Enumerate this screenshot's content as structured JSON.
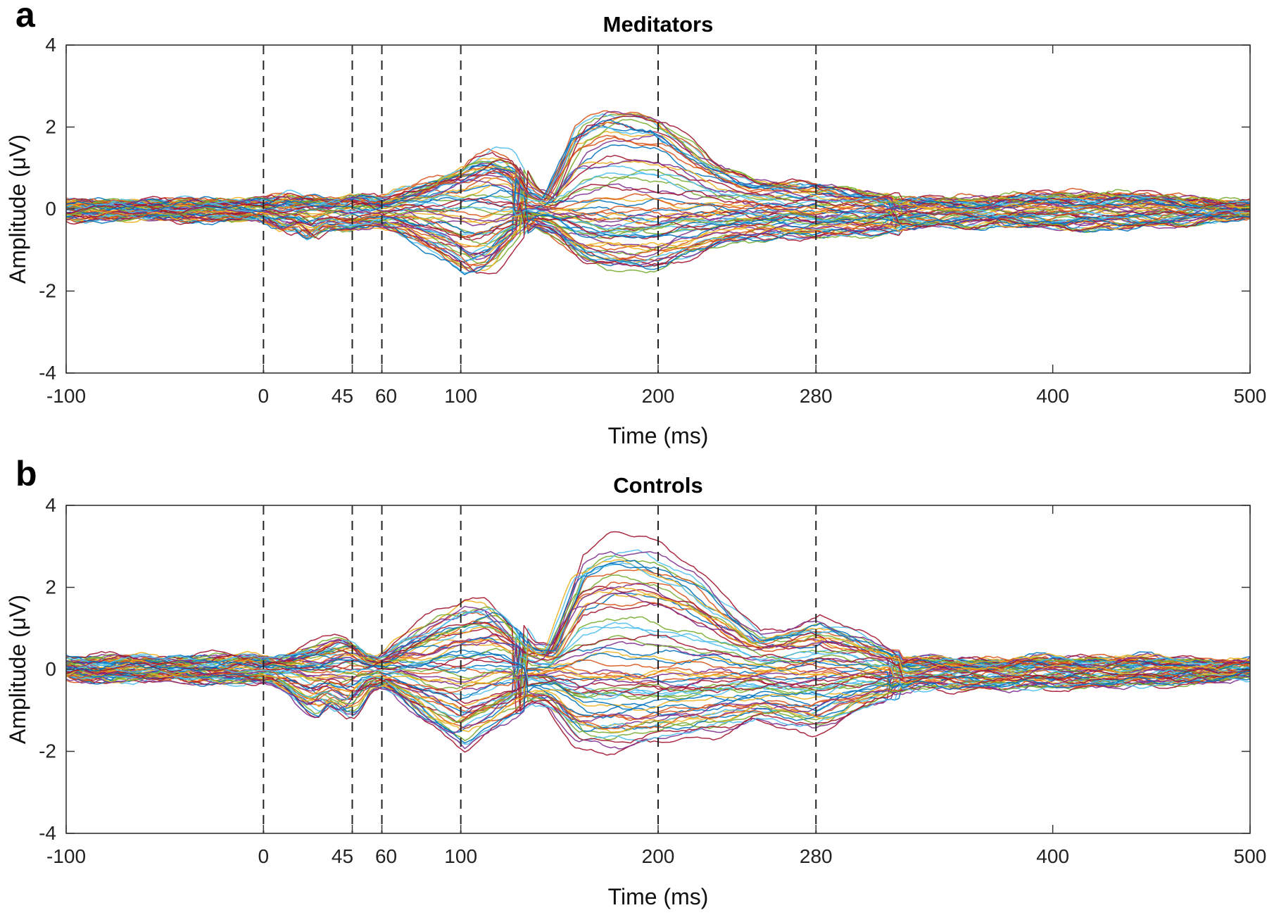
{
  "chart_data": [
    {
      "type": "line",
      "panel": "a",
      "title": "Meditators",
      "xlabel": "Time (ms)",
      "ylabel": "Amplitude (μV)",
      "xlim": [
        -100,
        500
      ],
      "ylim": [
        -4,
        4
      ],
      "x_ticks": [
        -100,
        0,
        45,
        60,
        100,
        200,
        280,
        400,
        500
      ],
      "y_ticks": [
        -4,
        -2,
        0,
        2,
        4
      ],
      "vertical_markers": [
        0,
        45,
        60,
        100,
        200,
        280
      ],
      "grid": false,
      "channel_count": 64,
      "envelope": {
        "x": [
          -100,
          0,
          10,
          18,
          25,
          32,
          40,
          45,
          52,
          60,
          70,
          80,
          90,
          100,
          105,
          115,
          125,
          135,
          145,
          160,
          175,
          190,
          200,
          215,
          230,
          250,
          280,
          300,
          320,
          340,
          370,
          400,
          430,
          460,
          500
        ],
        "max_pos": [
          0.2,
          0.25,
          0.4,
          0.3,
          0.35,
          0.25,
          0.3,
          0.4,
          0.35,
          0.3,
          0.5,
          0.7,
          1.0,
          1.2,
          1.45,
          1.7,
          1.5,
          0.6,
          0.3,
          1.9,
          2.3,
          2.3,
          2.2,
          1.6,
          1.0,
          0.7,
          0.55,
          0.45,
          0.3,
          0.3,
          0.4,
          0.5,
          0.55,
          0.4,
          0.2
        ],
        "max_neg": [
          -0.25,
          -0.3,
          -0.6,
          -0.5,
          -0.8,
          -0.5,
          -0.55,
          -0.6,
          -0.55,
          -0.5,
          -0.6,
          -0.9,
          -1.2,
          -1.6,
          -1.85,
          -1.7,
          -1.0,
          -0.4,
          -0.6,
          -1.3,
          -1.5,
          -1.55,
          -1.5,
          -1.2,
          -0.9,
          -0.75,
          -0.7,
          -0.65,
          -0.6,
          -0.5,
          -0.5,
          -0.55,
          -0.6,
          -0.45,
          -0.25
        ]
      }
    },
    {
      "type": "line",
      "panel": "b",
      "title": "Controls",
      "xlabel": "Time (ms)",
      "ylabel": "Amplitude (μV)",
      "xlim": [
        -100,
        500
      ],
      "ylim": [
        -4,
        4
      ],
      "x_ticks": [
        -100,
        0,
        45,
        60,
        100,
        200,
        280,
        400,
        500
      ],
      "y_ticks": [
        -4,
        -2,
        0,
        2,
        4
      ],
      "vertical_markers": [
        0,
        45,
        60,
        100,
        200,
        280
      ],
      "grid": false,
      "channel_count": 64,
      "envelope": {
        "x": [
          -100,
          0,
          10,
          18,
          25,
          32,
          40,
          45,
          52,
          60,
          70,
          80,
          90,
          100,
          105,
          115,
          125,
          135,
          145,
          160,
          175,
          190,
          200,
          215,
          230,
          250,
          280,
          300,
          320,
          340,
          370,
          400,
          430,
          460,
          500
        ],
        "max_pos": [
          0.3,
          0.35,
          0.3,
          0.5,
          0.6,
          0.7,
          0.85,
          0.8,
          0.4,
          0.3,
          0.8,
          1.1,
          1.4,
          1.6,
          1.75,
          1.8,
          1.3,
          0.6,
          0.5,
          2.5,
          2.85,
          2.85,
          2.7,
          2.3,
          1.6,
          0.8,
          1.1,
          0.8,
          0.4,
          0.3,
          0.3,
          0.35,
          0.4,
          0.35,
          0.25
        ],
        "max_neg": [
          -0.25,
          -0.35,
          -0.6,
          -1.0,
          -1.25,
          -0.9,
          -1.25,
          -1.2,
          -0.6,
          -0.5,
          -0.9,
          -1.3,
          -1.7,
          -2.1,
          -1.9,
          -1.6,
          -1.2,
          -0.8,
          -0.9,
          -1.8,
          -1.85,
          -1.75,
          -1.7,
          -1.6,
          -1.5,
          -1.2,
          -1.5,
          -1.0,
          -0.7,
          -0.55,
          -0.6,
          -0.55,
          -0.5,
          -0.45,
          -0.25
        ]
      }
    }
  ],
  "series_colors": [
    "#0072BD",
    "#D95319",
    "#EDB120",
    "#7E2F8E",
    "#77AC30",
    "#4DBEEE",
    "#A2142F"
  ]
}
